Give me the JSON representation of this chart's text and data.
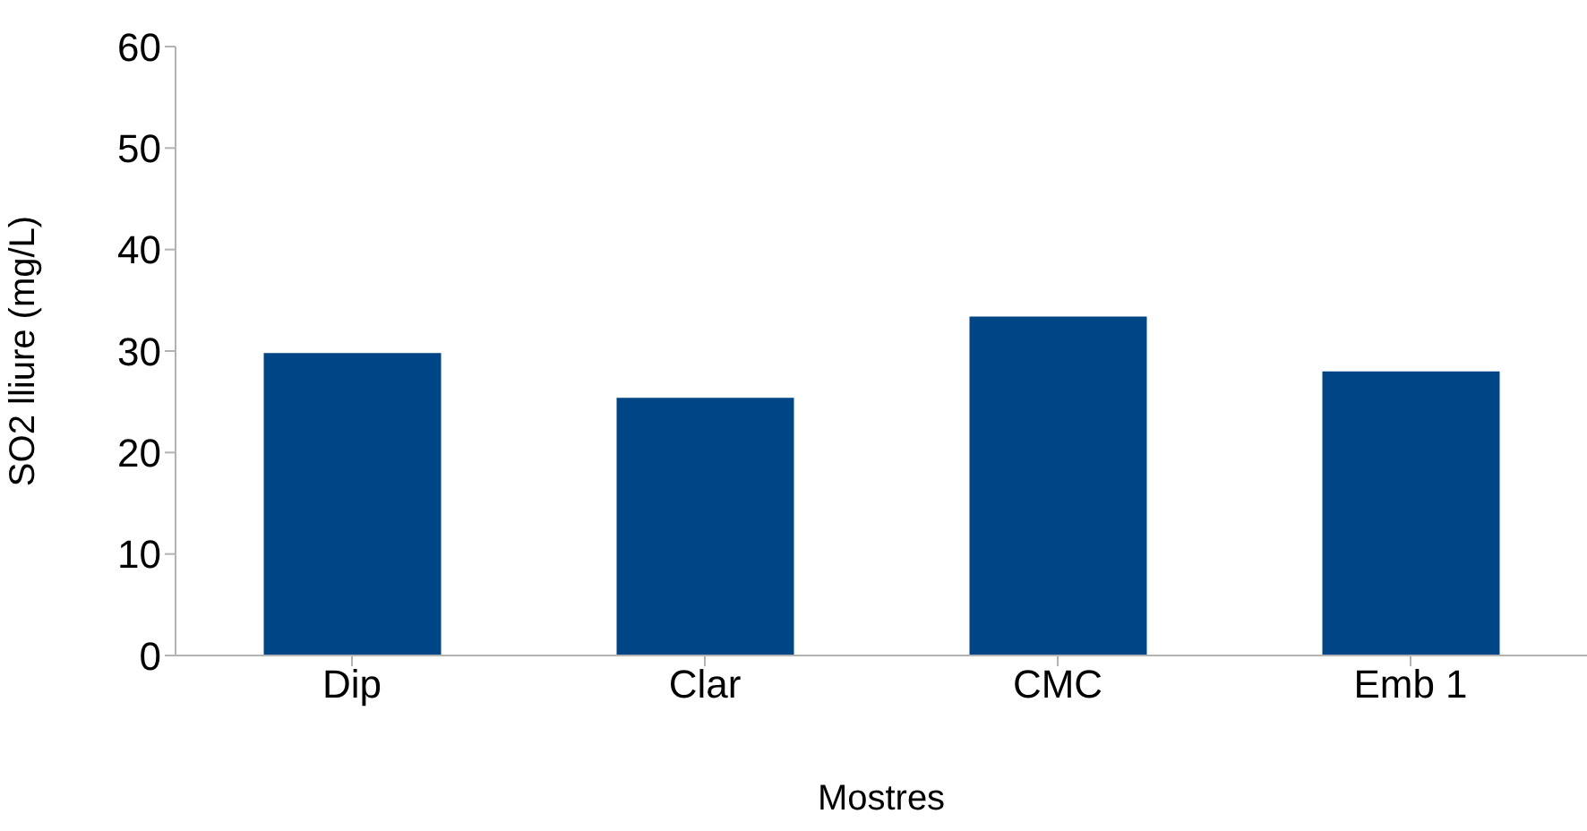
{
  "chart_data": {
    "type": "bar",
    "xlabel": "Mostres",
    "ylabel": "SO2 lliure (mg/L)",
    "categories": [
      "Dip",
      "Clar",
      "CMC",
      "Emb 1"
    ],
    "values": [
      29.8,
      25.4,
      33.4,
      28.0
    ],
    "color": "#004586",
    "ylim": [
      0,
      60
    ],
    "yticks": [
      0,
      10,
      20,
      30,
      40,
      50,
      60
    ],
    "grid": false,
    "legend": false
  }
}
